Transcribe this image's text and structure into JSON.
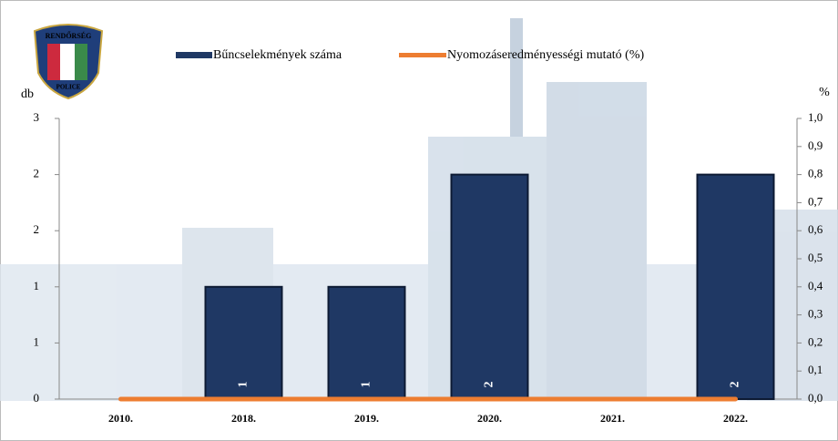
{
  "logo": {
    "top": "RENDŐRSÉG",
    "bottom": "POLICE"
  },
  "chart_data": {
    "type": "bar",
    "categories": [
      "2010.",
      "2018.",
      "2019.",
      "2020.",
      "2021.",
      "2022."
    ],
    "y_label": "db",
    "y2_label": "%",
    "series": [
      {
        "name": "Bűncselekmények száma",
        "type": "bar",
        "color": "#1f3864",
        "values": [
          0,
          1,
          1,
          2,
          0,
          2
        ],
        "value_labels": [
          null,
          "1",
          "1",
          "2",
          null,
          "2"
        ]
      },
      {
        "name": "Nyomozáseredményességi mutató (%)",
        "type": "line",
        "axis": "y2",
        "color": "#ed7d31",
        "values": [
          0,
          0,
          0,
          0,
          0,
          0
        ]
      }
    ],
    "ylim": [
      0,
      2.5
    ],
    "yticks": [
      0,
      {
        "value": 0.5,
        "label": "1"
      },
      1,
      {
        "value": 1.5,
        "label": "2"
      },
      2,
      {
        "value": 2.5,
        "label": "3"
      }
    ],
    "y2lim": [
      0,
      1
    ],
    "y2ticks": [
      {
        "value": 0,
        "label": "0,0"
      },
      {
        "value": 0.1,
        "label": "0,1"
      },
      {
        "value": 0.2,
        "label": "0,2"
      },
      {
        "value": 0.3,
        "label": "0,3"
      },
      {
        "value": 0.4,
        "label": "0,4"
      },
      {
        "value": 0.5,
        "label": "0,5"
      },
      {
        "value": 0.6,
        "label": "0,6"
      },
      {
        "value": 0.7,
        "label": "0,7"
      },
      {
        "value": 0.8,
        "label": "0,8"
      },
      {
        "value": 0.9,
        "label": "0,9"
      },
      {
        "value": 1,
        "label": "1,0"
      }
    ],
    "grid": false
  }
}
